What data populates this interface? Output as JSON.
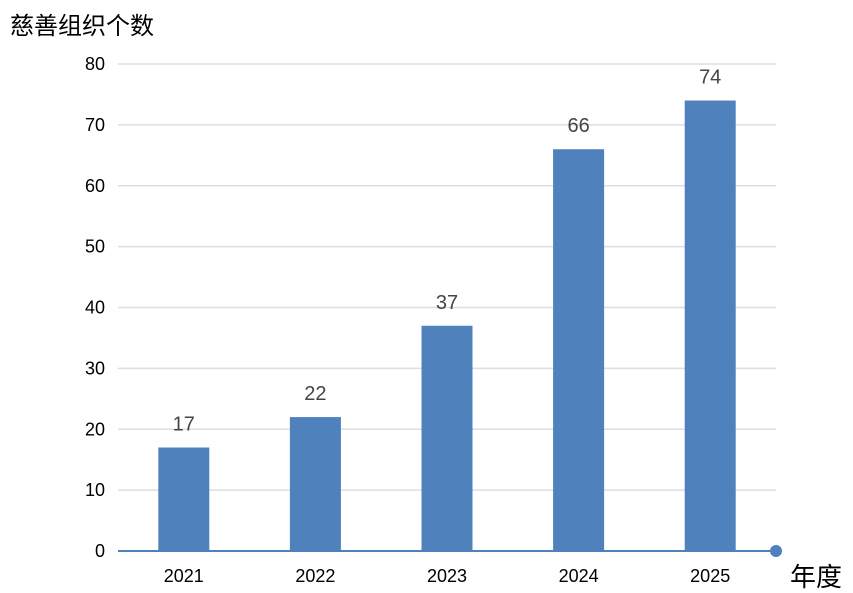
{
  "chart_data": {
    "type": "bar",
    "categories": [
      "2021",
      "2022",
      "2023",
      "2024",
      "2025"
    ],
    "values": [
      17,
      22,
      37,
      66,
      74
    ],
    "data_labels": [
      "17",
      "22",
      "37",
      "66",
      "74"
    ],
    "ylabel": "慈善组织个数",
    "xlabel": "年度",
    "ylim": [
      0,
      80
    ],
    "yticks": [
      0,
      10,
      20,
      30,
      40,
      50,
      60,
      70,
      80
    ],
    "grid": true,
    "legend": "none",
    "bar_color": "#4f81bd"
  }
}
